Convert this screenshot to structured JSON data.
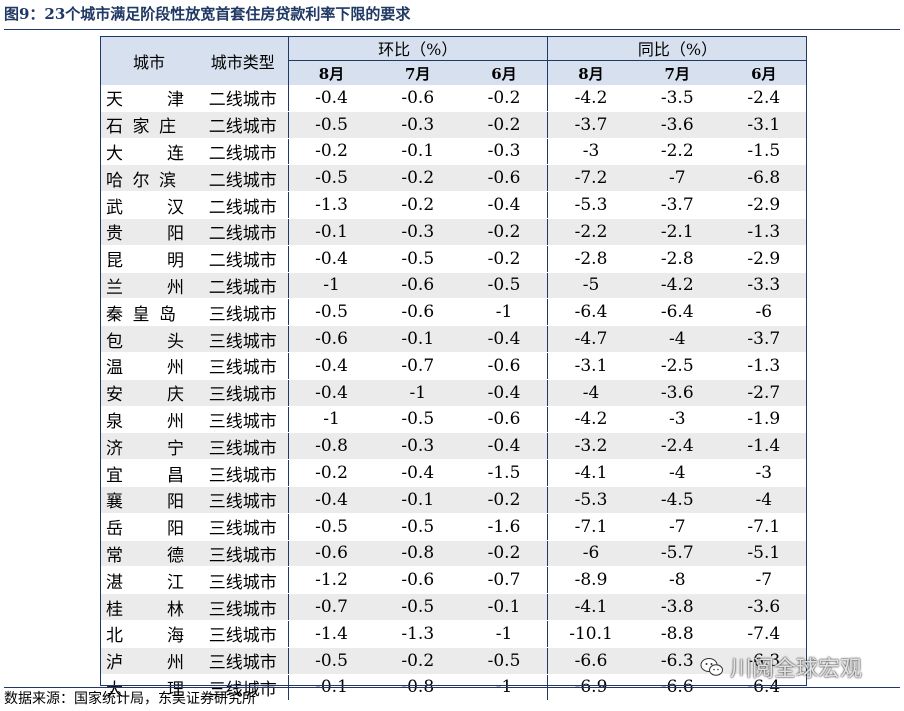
{
  "title": "图9：23个城市满足阶段性放宽首套住房贷款利率下限的要求",
  "source": "数据来源：国家统计局，东吴证券研究所",
  "watermark": "川阅全球宏观",
  "colors": {
    "header_bg": "#d6e0ee",
    "title": "#1f3864",
    "stripe": "#ebebeb"
  },
  "header": {
    "city": "城市",
    "type": "城市类型",
    "mom": "环比（%）",
    "yoy": "同比（%）",
    "months": [
      "8月",
      "7月",
      "6月",
      "8月",
      "7月",
      "6月"
    ]
  },
  "rows": [
    {
      "city": [
        "天",
        "津"
      ],
      "type": "二线城市",
      "v": [
        "-0.4",
        "-0.6",
        "-0.2",
        "-4.2",
        "-3.5",
        "-2.4"
      ]
    },
    {
      "city": [
        "石",
        "家",
        "庄"
      ],
      "type": "二线城市",
      "v": [
        "-0.5",
        "-0.3",
        "-0.2",
        "-3.7",
        "-3.6",
        "-3.1"
      ]
    },
    {
      "city": [
        "大",
        "连"
      ],
      "type": "二线城市",
      "v": [
        "-0.2",
        "-0.1",
        "-0.3",
        "-3",
        "-2.2",
        "-1.5"
      ]
    },
    {
      "city": [
        "哈",
        "尔",
        "滨"
      ],
      "type": "二线城市",
      "v": [
        "-0.5",
        "-0.2",
        "-0.6",
        "-7.2",
        "-7",
        "-6.8"
      ]
    },
    {
      "city": [
        "武",
        "汉"
      ],
      "type": "二线城市",
      "v": [
        "-1.3",
        "-0.2",
        "-0.4",
        "-5.3",
        "-3.7",
        "-2.9"
      ]
    },
    {
      "city": [
        "贵",
        "阳"
      ],
      "type": "二线城市",
      "v": [
        "-0.1",
        "-0.3",
        "-0.2",
        "-2.2",
        "-2.1",
        "-1.3"
      ]
    },
    {
      "city": [
        "昆",
        "明"
      ],
      "type": "二线城市",
      "v": [
        "-0.4",
        "-0.5",
        "-0.2",
        "-2.8",
        "-2.8",
        "-2.9"
      ]
    },
    {
      "city": [
        "兰",
        "州"
      ],
      "type": "二线城市",
      "v": [
        "-1",
        "-0.6",
        "-0.5",
        "-5",
        "-4.2",
        "-3.3"
      ]
    },
    {
      "city": [
        "秦",
        "皇",
        "岛"
      ],
      "type": "三线城市",
      "v": [
        "-0.5",
        "-0.6",
        "-1",
        "-6.4",
        "-6.4",
        "-6"
      ]
    },
    {
      "city": [
        "包",
        "头"
      ],
      "type": "三线城市",
      "v": [
        "-0.6",
        "-0.1",
        "-0.4",
        "-4.7",
        "-4",
        "-3.7"
      ]
    },
    {
      "city": [
        "温",
        "州"
      ],
      "type": "三线城市",
      "v": [
        "-0.4",
        "-0.7",
        "-0.6",
        "-3.1",
        "-2.5",
        "-1.3"
      ]
    },
    {
      "city": [
        "安",
        "庆"
      ],
      "type": "三线城市",
      "v": [
        "-0.4",
        "-1",
        "-0.4",
        "-4",
        "-3.6",
        "-2.7"
      ]
    },
    {
      "city": [
        "泉",
        "州"
      ],
      "type": "三线城市",
      "v": [
        "-1",
        "-0.5",
        "-0.6",
        "-4.2",
        "-3",
        "-1.9"
      ]
    },
    {
      "city": [
        "济",
        "宁"
      ],
      "type": "三线城市",
      "v": [
        "-0.8",
        "-0.3",
        "-0.4",
        "-3.2",
        "-2.4",
        "-1.4"
      ]
    },
    {
      "city": [
        "宜",
        "昌"
      ],
      "type": "三线城市",
      "v": [
        "-0.2",
        "-0.4",
        "-1.5",
        "-4.1",
        "-4",
        "-3"
      ]
    },
    {
      "city": [
        "襄",
        "阳"
      ],
      "type": "三线城市",
      "v": [
        "-0.4",
        "-0.1",
        "-0.2",
        "-5.3",
        "-4.5",
        "-4"
      ]
    },
    {
      "city": [
        "岳",
        "阳"
      ],
      "type": "三线城市",
      "v": [
        "-0.5",
        "-0.5",
        "-1.6",
        "-7.1",
        "-7",
        "-7.1"
      ]
    },
    {
      "city": [
        "常",
        "德"
      ],
      "type": "三线城市",
      "v": [
        "-0.6",
        "-0.8",
        "-0.2",
        "-6",
        "-5.7",
        "-5.1"
      ]
    },
    {
      "city": [
        "湛",
        "江"
      ],
      "type": "三线城市",
      "v": [
        "-1.2",
        "-0.6",
        "-0.7",
        "-8.9",
        "-8",
        "-7"
      ]
    },
    {
      "city": [
        "桂",
        "林"
      ],
      "type": "三线城市",
      "v": [
        "-0.7",
        "-0.5",
        "-0.1",
        "-4.1",
        "-3.8",
        "-3.6"
      ]
    },
    {
      "city": [
        "北",
        "海"
      ],
      "type": "三线城市",
      "v": [
        "-1.4",
        "-1.3",
        "-1",
        "-10.1",
        "-8.8",
        "-7.4"
      ]
    },
    {
      "city": [
        "泸",
        "州"
      ],
      "type": "三线城市",
      "v": [
        "-0.5",
        "-0.2",
        "-0.5",
        "-6.6",
        "-6.3",
        "-6.3"
      ]
    },
    {
      "city": [
        "大",
        "理"
      ],
      "type": "三线城市",
      "v": [
        "-0.1",
        "-0.8",
        "-1",
        "-6.9",
        "-6.6",
        "-6.4"
      ]
    }
  ]
}
